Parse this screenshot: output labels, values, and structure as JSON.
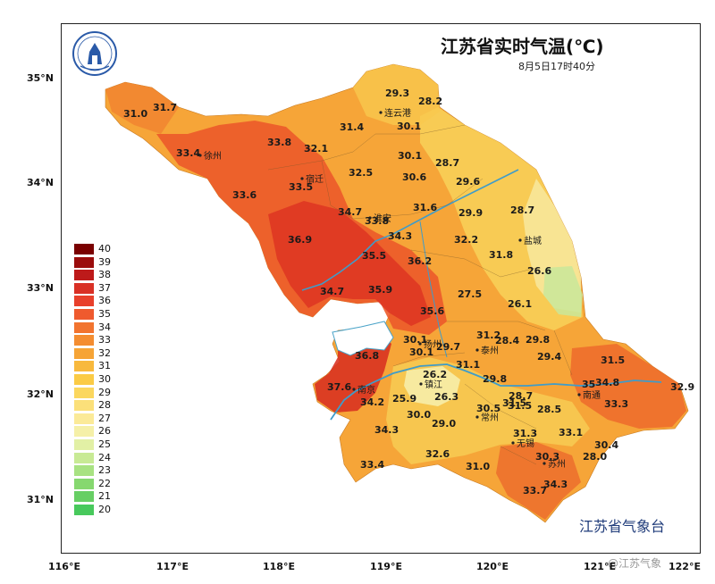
{
  "title": "江苏省实时气温(℃)",
  "subtitle": "8月5日17时40分",
  "organization": "江苏省气象台",
  "watermark": "@江苏气象",
  "axes": {
    "y_ticks": [
      "35°N",
      "34°N",
      "33°N",
      "32°N",
      "31°N"
    ],
    "x_ticks": [
      "116°E",
      "117°E",
      "118°E",
      "119°E",
      "120°E",
      "121°E",
      "122°E"
    ]
  },
  "legend": {
    "levels": [
      "40",
      "39",
      "38",
      "37",
      "36",
      "35",
      "34",
      "33",
      "32",
      "31",
      "30",
      "29",
      "28",
      "27",
      "26",
      "25",
      "24",
      "23",
      "22",
      "21",
      "20"
    ],
    "colors": [
      "#7a0000",
      "#9b0c0c",
      "#bd1a1a",
      "#d93025",
      "#e8402b",
      "#ef5a2e",
      "#f2742f",
      "#f48d31",
      "#f6a436",
      "#f8b93d",
      "#fbcb45",
      "#fbd75e",
      "#fbe07a",
      "#fbea98",
      "#f5f0a8",
      "#e2f0a5",
      "#c8ea95",
      "#a8e282",
      "#86d86f",
      "#67cf64",
      "#48c95c"
    ],
    "colors_note": "from 40 down to 20"
  },
  "cities": [
    {
      "name": "徐州"
    },
    {
      "name": "宿迁"
    },
    {
      "name": "连云港"
    },
    {
      "name": "淮安"
    },
    {
      "name": "盐城"
    },
    {
      "name": "扬州"
    },
    {
      "name": "泰州"
    },
    {
      "name": "镇江"
    },
    {
      "name": "南京"
    },
    {
      "name": "常州"
    },
    {
      "name": "无锡"
    },
    {
      "name": "苏州"
    },
    {
      "name": "南通"
    }
  ],
  "readings": [
    "29.3",
    "28.2",
    "31.0",
    "31.7",
    "31.4",
    "30.1",
    "33.8",
    "32.1",
    "33.4",
    "30.1",
    "28.7",
    "32.5",
    "30.6",
    "29.6",
    "33.6",
    "33.5",
    "34.7",
    "33.8",
    "31.6",
    "29.9",
    "28.7",
    "36.9",
    "34.3",
    "32.2",
    "31.8",
    "35.5",
    "36.2",
    "26.6",
    "34.7",
    "35.9",
    "27.5",
    "26.1",
    "35.6",
    "31.2",
    "28.4",
    "29.8",
    "30.1",
    "29.7",
    "30.1",
    "36.8",
    "29.4",
    "31.1",
    "26.2",
    "29.8",
    "31.5",
    "37.6",
    "34.8",
    "32.9",
    "34.2",
    "25.9",
    "26.3",
    "28.7",
    "31.5",
    "28.5",
    "33.3",
    "35",
    "30.0",
    "30.5",
    "31.5",
    "29.0",
    "34.3",
    "31.3",
    "33.1",
    "30.4",
    "32.6",
    "30.3",
    "28.0",
    "33.4",
    "31.0",
    "34.3",
    "33.7"
  ]
}
